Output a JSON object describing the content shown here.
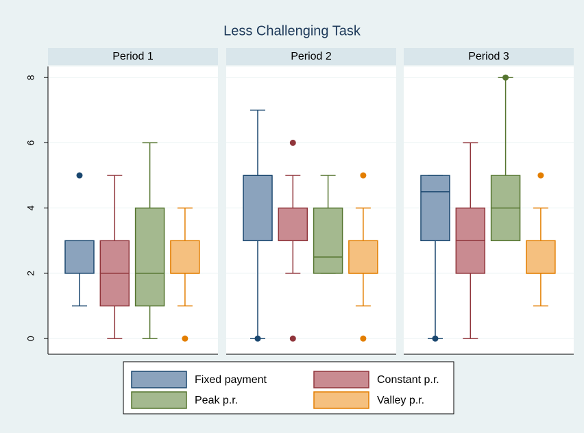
{
  "chart_data": {
    "type": "box",
    "title": "Less Challenging Task",
    "ylim": [
      -0.48,
      8.34
    ],
    "yticks": [
      0,
      2,
      4,
      6,
      8
    ],
    "grid": true,
    "legend": "bottom",
    "series": [
      {
        "name": "Fixed payment",
        "color": "#8ba3bd",
        "stroke": "#1a476f"
      },
      {
        "name": "Constant p.r.",
        "color": "#c98b91",
        "stroke": "#90353b"
      },
      {
        "name": "Peak p.r.",
        "color": "#a4b98f",
        "stroke": "#55752f"
      },
      {
        "name": "Valley p.r.",
        "color": "#f5c07f",
        "stroke": "#e37e00"
      }
    ],
    "panels": [
      {
        "title": "Period 1",
        "boxes": [
          {
            "min": 1,
            "q1": 2,
            "median": 3,
            "q3": 3,
            "max": 3,
            "outliers": [
              5
            ]
          },
          {
            "min": 0,
            "q1": 1,
            "median": 2,
            "q3": 3,
            "max": 5,
            "outliers": []
          },
          {
            "min": 0,
            "q1": 1,
            "median": 2,
            "q3": 4,
            "max": 6,
            "outliers": []
          },
          {
            "min": 1,
            "q1": 2,
            "median": 2,
            "q3": 3,
            "max": 4,
            "outliers": [
              0
            ]
          }
        ]
      },
      {
        "title": "Period 2",
        "boxes": [
          {
            "min": 0,
            "q1": 3,
            "median": 5,
            "q3": 5,
            "max": 7,
            "outliers": [
              0
            ]
          },
          {
            "min": 2,
            "q1": 3,
            "median": 3,
            "q3": 4,
            "max": 5,
            "outliers": [
              6,
              0
            ]
          },
          {
            "min": 2,
            "q1": 2,
            "median": 2.5,
            "q3": 4,
            "max": 5,
            "outliers": []
          },
          {
            "min": 1,
            "q1": 2,
            "median": 2,
            "q3": 3,
            "max": 4,
            "outliers": [
              5,
              0
            ]
          }
        ]
      },
      {
        "title": "Period 3",
        "boxes": [
          {
            "min": 0,
            "q1": 3,
            "median": 4.5,
            "q3": 5,
            "max": 5,
            "outliers": [
              0
            ]
          },
          {
            "min": 0,
            "q1": 2,
            "median": 3,
            "q3": 4,
            "max": 6,
            "outliers": []
          },
          {
            "min": 3,
            "q1": 3,
            "median": 4,
            "q3": 5,
            "max": 8,
            "outliers": [
              8
            ]
          },
          {
            "min": 1,
            "q1": 2,
            "median": 2,
            "q3": 3,
            "max": 4,
            "outliers": [
              5
            ]
          }
        ]
      }
    ]
  }
}
